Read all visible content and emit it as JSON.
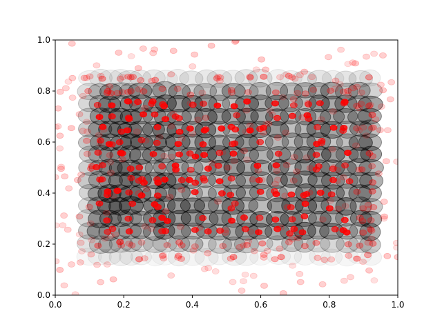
{
  "chart_data": {
    "type": "scatter",
    "title": "",
    "xlabel": "",
    "ylabel": "",
    "xlim": [
      0.0,
      1.0
    ],
    "ylim": [
      0.0,
      1.0
    ],
    "x_ticks": [
      "0.0",
      "0.2",
      "0.4",
      "0.6",
      "0.8",
      "1.0"
    ],
    "y_ticks": [
      "0.0",
      "0.2",
      "0.4",
      "0.6",
      "0.8",
      "1.0"
    ],
    "grid": false,
    "legend": "none",
    "series": [
      {
        "role": "large-dark-markers",
        "color": "#000000",
        "alpha_range": [
          0.02,
          0.3
        ],
        "grid_x": [
          0.1,
          0.13,
          0.16,
          0.19,
          0.22,
          0.25,
          0.29,
          0.32,
          0.36,
          0.4,
          0.44,
          0.48,
          0.52,
          0.56,
          0.6,
          0.65,
          0.69,
          0.73,
          0.77,
          0.81,
          0.85,
          0.89,
          0.92
        ],
        "grid_y": [
          0.15,
          0.2,
          0.25,
          0.3,
          0.35,
          0.4,
          0.45,
          0.5,
          0.55,
          0.6,
          0.65,
          0.7,
          0.75,
          0.8,
          0.85
        ],
        "dense_region": {
          "x": [
            0.15,
            0.9
          ],
          "y": [
            0.25,
            0.77
          ]
        }
      },
      {
        "role": "small-red-markers",
        "color": "#ff0000",
        "alpha_range": [
          0.12,
          0.9
        ],
        "approx_count": 520,
        "spread": {
          "x": [
            0.0,
            1.0
          ],
          "y": [
            0.0,
            1.0
          ]
        }
      }
    ]
  }
}
